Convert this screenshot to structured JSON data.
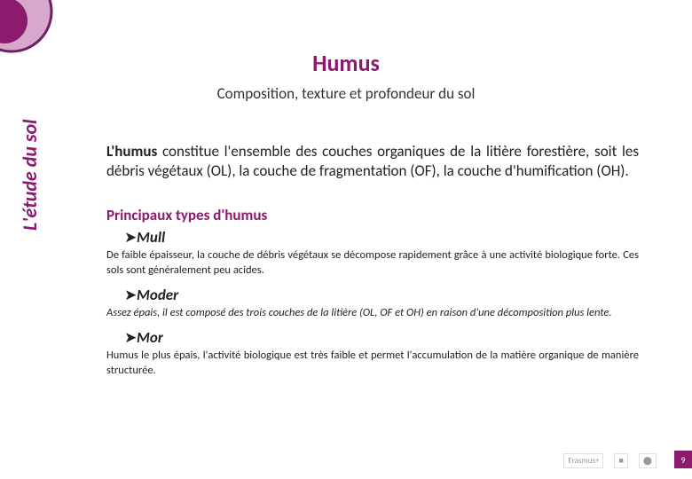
{
  "decoration": {
    "outer_color": "#6e1f63",
    "outer_light": "#d8a8cc",
    "inner_color": "#8b1a6e"
  },
  "title": "Humus",
  "subtitle": "Composition, texture et profondeur du sol",
  "side_label": "L'étude du sol",
  "intro_bold": "L'humus",
  "intro_rest": " constitue l'ensemble des couches organiques de la litière forestière, soit les débris végétaux (OL), la couche de fragmentation (OF), la couche d'humification (OH).",
  "section_heading": "Principaux types d'humus",
  "types": [
    {
      "name": "Mull",
      "desc": "De faible épaisseur, la couche de débris végétaux se décompose rapidement grâce à une activité biologique forte. Ces sols sont généralement peu acides.",
      "desc_italic": false
    },
    {
      "name": "Moder",
      "desc": "Assez épais, il est composé des trois couches de la litière (OL, OF et OH) en raison d'une décomposition plus lente.",
      "desc_italic": true
    },
    {
      "name": "Mor",
      "desc": "Humus le plus épais, l'activité biologique est très faible et permet l'accumulation de la matière organique de manière structurée.",
      "desc_italic": false
    }
  ],
  "footer": {
    "logos": [
      "Erasmus+",
      "■",
      "⬤"
    ],
    "page": "9"
  }
}
